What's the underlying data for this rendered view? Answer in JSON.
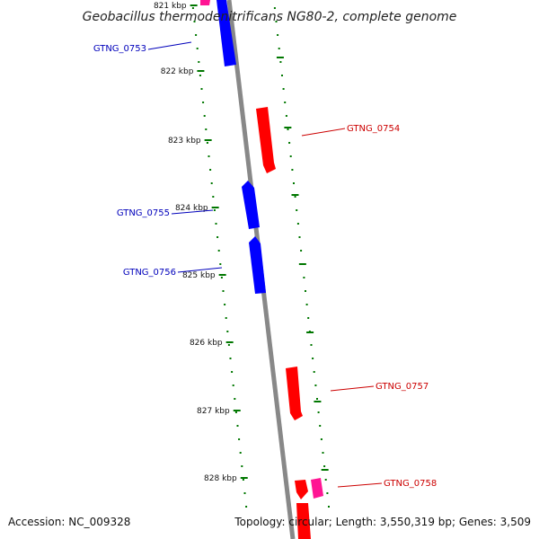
{
  "map": {
    "title": "Geobacillus thermodenitrificans NG80-2, complete genome",
    "colors": {
      "forward": "#ff0000",
      "forward_light": "#ff2a2a",
      "forward_shade": "#b20000",
      "reverse": "#0000ff",
      "reverse_shade": "#00009a",
      "other": "#ff1493",
      "backbone": "#888888",
      "tick": "#007700",
      "reverse_label": "#0000bb",
      "forward_label": "#cc0000"
    },
    "ticks": [
      "821 kbp",
      "822 kbp",
      "823 kbp",
      "824 kbp",
      "825 kbp",
      "826 kbp",
      "827 kbp",
      "828 kbp"
    ],
    "genes": [
      {
        "name": "GTNG_0753",
        "strand": "reverse"
      },
      {
        "name": "GTNG_0754",
        "strand": "forward"
      },
      {
        "name": "GTNG_0755",
        "strand": "reverse"
      },
      {
        "name": "GTNG_0756",
        "strand": "reverse"
      },
      {
        "name": "GTNG_0757",
        "strand": "forward"
      },
      {
        "name": "GTNG_0758",
        "strand": "forward"
      }
    ]
  },
  "footer": {
    "accession": "Accession: NC_009328",
    "summary": "Topology: circular; Length: 3,550,319 bp; Genes: 3,509"
  }
}
